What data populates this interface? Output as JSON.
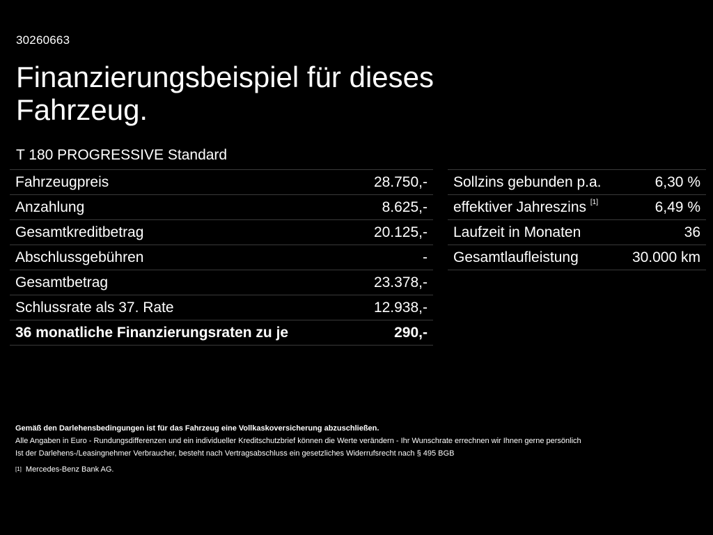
{
  "header": {
    "reference": "30260663",
    "title": "Finanzierungsbeispiel für dieses Fahrzeug.",
    "model": "T 180 PROGRESSIVE Standard"
  },
  "left_table": [
    {
      "label": "Fahrzeugpreis",
      "value": "28.750,-"
    },
    {
      "label": "Anzahlung",
      "value": "8.625,-"
    },
    {
      "label": "Gesamtkreditbetrag",
      "value": "20.125,-"
    },
    {
      "label": "Abschlussgebühren",
      "value": "-"
    },
    {
      "label": "Gesamtbetrag",
      "value": "23.378,-"
    },
    {
      "label": "Schlussrate als 37. Rate",
      "value": "12.938,-"
    },
    {
      "label": "36 monatliche Finanzierungsraten zu je",
      "value": "290,-"
    }
  ],
  "right_table": [
    {
      "label": "Sollzins gebunden p.a.",
      "value": "6,30 %"
    },
    {
      "label": "effektiver Jahreszins",
      "footnote": "[1]",
      "value": "6,49 %"
    },
    {
      "label": "Laufzeit in Monaten",
      "value": "36"
    },
    {
      "label": "Gesamtlaufleistung",
      "value": "30.000 km"
    }
  ],
  "notes": {
    "insurance": "Gemäß den Darlehensbedingungen ist für das Fahrzeug eine Vollkaskoversicherung abzuschließen.",
    "disclaimer": "Alle Angaben in Euro - Rundungsdifferenzen und ein individueller Kreditschutzbrief können die Werte verändern - Ihr Wunschrate errechnen wir Ihnen gerne persönlich",
    "revocation": "Ist der Darlehens-/Leasingnehmer Verbraucher, besteht nach Vertragsabschluss ein gesetzliches Widerrufsrecht nach § 495 BGB",
    "footnote_mark": "[1]",
    "footnote_text": "Mercedes-Benz Bank AG."
  },
  "colors": {
    "background": "#000000",
    "text": "#ffffff",
    "divider": "#3a3a3a"
  }
}
